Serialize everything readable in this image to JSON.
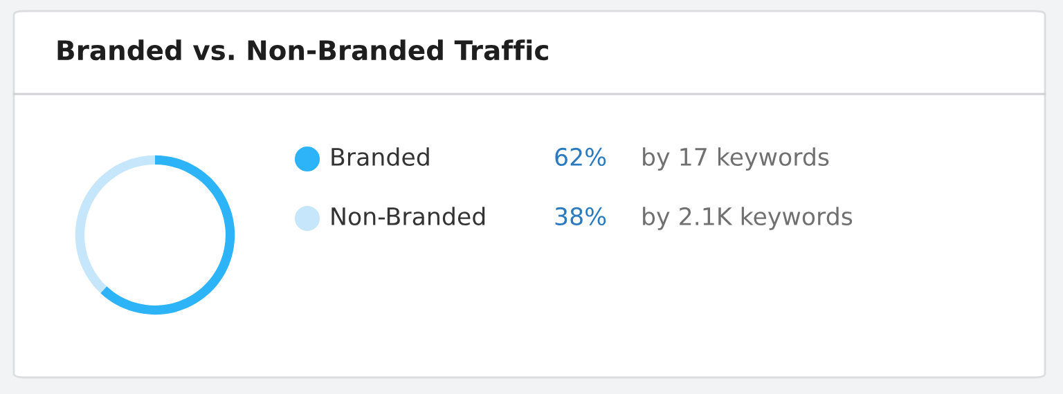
{
  "chart_data": {
    "type": "donut",
    "title": "Branded vs. Non-Branded Traffic",
    "categories": [
      "Branded",
      "Non-Branded"
    ],
    "values": [
      62,
      38
    ],
    "colors": [
      "#2cb3f8",
      "#c5e6fb"
    ],
    "value_labels": [
      "62%",
      "38%"
    ],
    "annotations": [
      "by 17 keywords",
      "by 2.1K keywords"
    ],
    "legend": "right"
  }
}
